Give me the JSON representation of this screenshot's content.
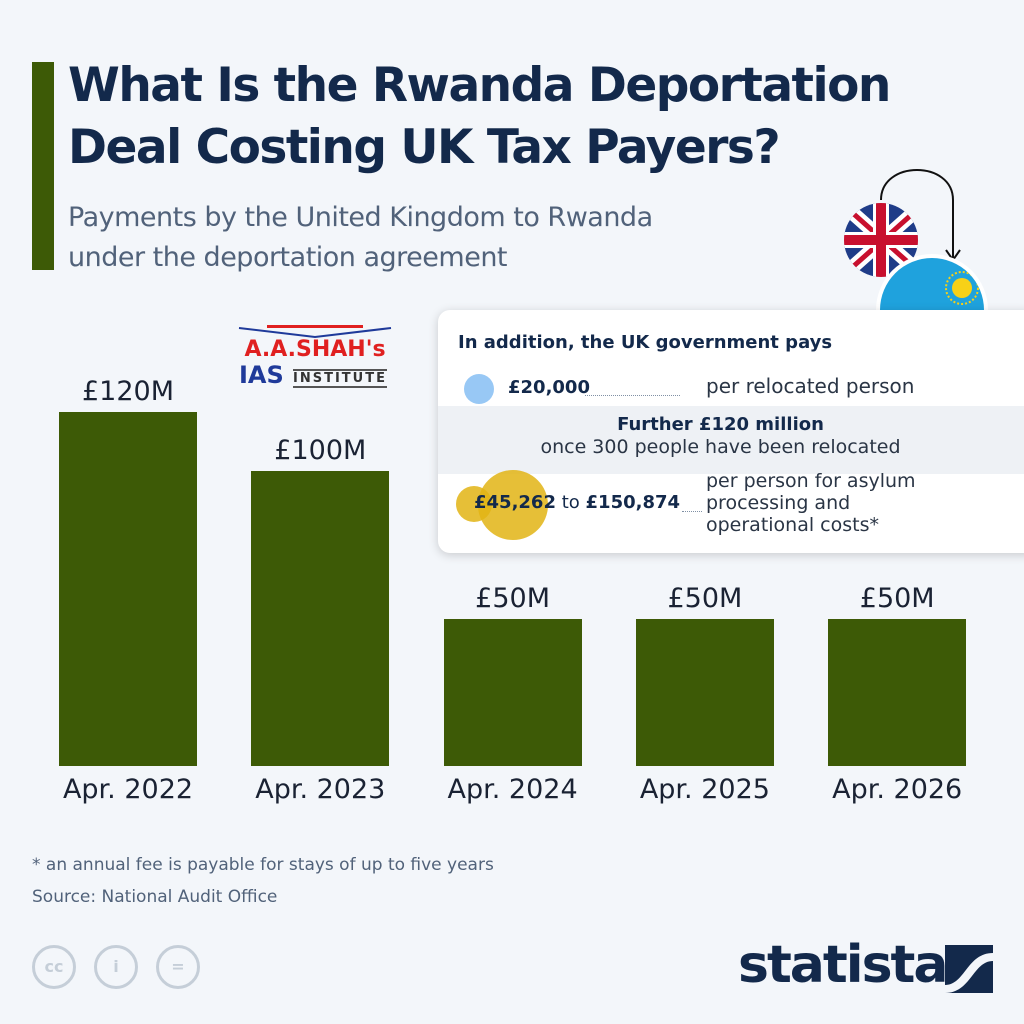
{
  "header": {
    "title_line1": "What Is the Rwanda Deportation",
    "title_line2": "Deal Costing UK Tax Payers?",
    "subtitle_line1": "Payments by the United Kingdom to Rwanda",
    "subtitle_line2": "under the deportation agreement"
  },
  "chart_data": {
    "type": "bar",
    "title": "What Is the Rwanda Deportation Deal Costing UK Tax Payers?",
    "subtitle": "Payments by the United Kingdom to Rwanda under the deportation agreement",
    "categories": [
      "Apr. 2022",
      "Apr. 2023",
      "Apr. 2024",
      "Apr. 2025",
      "Apr. 2026"
    ],
    "values": [
      120,
      100,
      50,
      50,
      50
    ],
    "value_labels": [
      "£120M",
      "£100M",
      "£50M",
      "£50M",
      "£50M"
    ],
    "unit": "£ million",
    "xlabel": "",
    "ylabel": "",
    "ylim": [
      0,
      120
    ],
    "grid": false,
    "bar_color": "#3d5a06"
  },
  "logo": {
    "line1": "A.A.SHAH's",
    "ias": "IAS",
    "institute": "INSTITUTE"
  },
  "info_box": {
    "heading": "In addition, the UK government pays",
    "item1_amount": "£20,000",
    "item1_desc": "per relocated person",
    "item2_heading": "Further £120 million",
    "item2_desc": "once 300 people have been relocated",
    "item3_low": "£45,262",
    "item3_to": "to",
    "item3_high": "£150,874",
    "item3_desc_line1": "per person for asylum",
    "item3_desc_line2": "processing and",
    "item3_desc_line3": "operational costs*"
  },
  "footer": {
    "footnote": "* an annual fee is payable for stays of up to five years",
    "source": "Source: National Audit Office",
    "cc_labels": [
      "cc",
      "i",
      "="
    ],
    "brand": "statista"
  },
  "colors": {
    "accent": "#3d5a06",
    "title": "#13294b",
    "blue_dot": "#98c8f5",
    "gold": "#e2b414"
  }
}
